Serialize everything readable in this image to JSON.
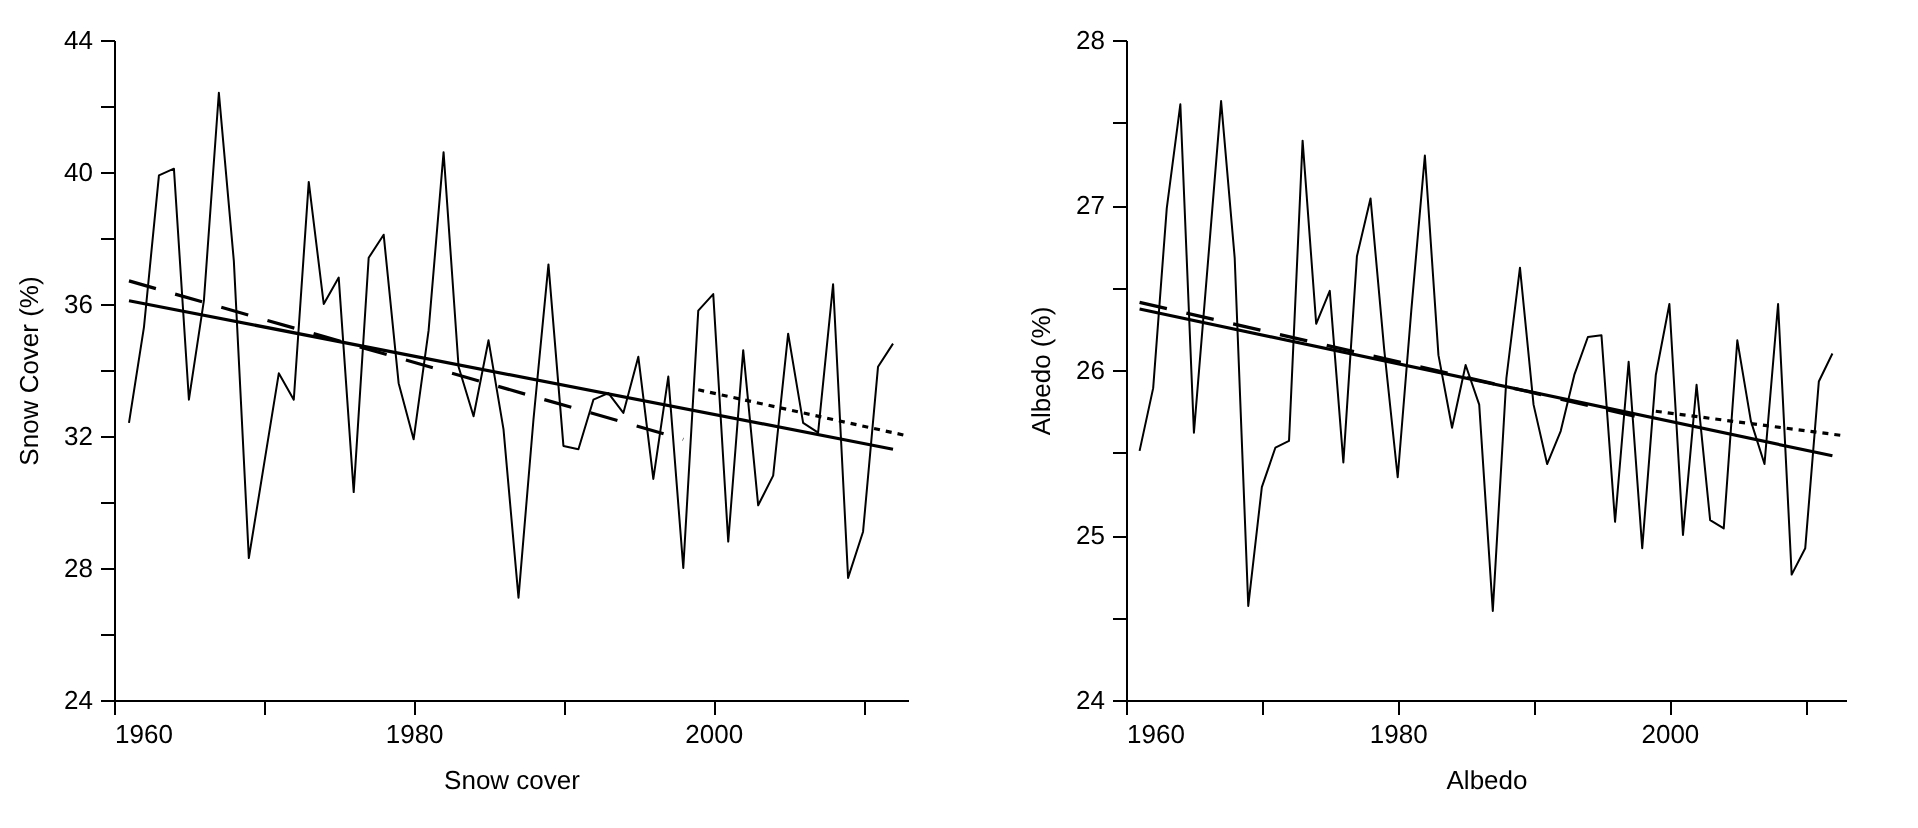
{
  "chart_data": [
    {
      "type": "line",
      "xlabel": "Snow cover",
      "ylabel": "Snow Cover (%)",
      "xlim": [
        1960,
        2013
      ],
      "ylim": [
        24,
        44
      ],
      "xticks": [
        1960,
        {
          "value": 1970,
          "label": null
        },
        1980,
        {
          "value": 1990,
          "label": null
        },
        2000,
        {
          "value": 2010,
          "label": null
        }
      ],
      "yticks": [
        24,
        {
          "value": 26,
          "label": null
        },
        28,
        {
          "value": 30,
          "label": null
        },
        32,
        {
          "value": 34,
          "label": null
        },
        36,
        {
          "value": 38,
          "label": null
        },
        40,
        {
          "value": 42,
          "label": null
        },
        44
      ],
      "grid": false,
      "marker": "none",
      "x": [
        1961,
        1962,
        1963,
        1964,
        1965,
        1966,
        1967,
        1968,
        1969,
        1970,
        1971,
        1972,
        1973,
        1974,
        1975,
        1976,
        1977,
        1978,
        1979,
        1980,
        1981,
        1982,
        1983,
        1984,
        1985,
        1986,
        1987,
        1988,
        1989,
        1990,
        1991,
        1992,
        1993,
        1994,
        1995,
        1996,
        1997,
        1998,
        1999,
        2000,
        2001,
        2002,
        2003,
        2004,
        2005,
        2006,
        2007,
        2008,
        2009,
        2010,
        2011,
        2012
      ],
      "series": [
        {
          "color": "#000000",
          "line_style": "solid",
          "values": [
            32.4,
            35.3,
            39.9,
            40.1,
            33.1,
            36.1,
            42.4,
            37.3,
            28.3,
            31.1,
            33.9,
            33.1,
            39.7,
            36.0,
            36.8,
            30.3,
            37.4,
            38.1,
            33.6,
            31.9,
            35.2,
            40.6,
            34.1,
            32.6,
            34.9,
            32.2,
            27.1,
            32.5,
            37.2,
            31.7,
            31.6,
            33.1,
            33.3,
            32.7,
            34.4,
            30.7,
            33.8,
            28.0,
            35.8,
            36.3,
            28.8,
            34.6,
            29.9,
            30.8,
            35.1,
            32.4,
            32.1,
            36.6,
            27.7,
            29.1,
            34.1,
            34.8
          ]
        },
        {
          "color": "#000000",
          "line_style": "solid",
          "x": [
            1961,
            2012
          ],
          "values": [
            36.1,
            31.6
          ]
        },
        {
          "color": "#000000",
          "line_style": "dashed",
          "x": [
            1961,
            1998
          ],
          "values": [
            36.7,
            31.9
          ]
        },
        {
          "color": "#000000",
          "line_style": "dotted",
          "x": [
            1999,
            2013
          ],
          "values": [
            33.4,
            32.0
          ]
        }
      ]
    },
    {
      "type": "line",
      "xlabel": "Albedo",
      "ylabel": "Albedo (%)",
      "xlim": [
        1960,
        2013
      ],
      "ylim": [
        24,
        28
      ],
      "xticks": [
        1960,
        {
          "value": 1970,
          "label": null
        },
        1980,
        {
          "value": 1990,
          "label": null
        },
        2000,
        {
          "value": 2010,
          "label": null
        }
      ],
      "yticks": [
        24,
        {
          "value": 24.5,
          "label": null
        },
        25,
        {
          "value": 25.5,
          "label": null
        },
        26,
        {
          "value": 26.5,
          "label": null
        },
        27,
        {
          "value": 27.5,
          "label": null
        },
        28
      ],
      "grid": false,
      "marker": "none",
      "x": [
        1961,
        1962,
        1963,
        1964,
        1965,
        1966,
        1967,
        1968,
        1969,
        1970,
        1971,
        1972,
        1973,
        1974,
        1975,
        1976,
        1977,
        1978,
        1979,
        1980,
        1981,
        1982,
        1983,
        1984,
        1985,
        1986,
        1987,
        1988,
        1989,
        1990,
        1991,
        1992,
        1993,
        1994,
        1995,
        1996,
        1997,
        1998,
        1999,
        2000,
        2001,
        2002,
        2003,
        2004,
        2005,
        2006,
        2007,
        2008,
        2009,
        2010,
        2011,
        2012
      ],
      "series": [
        {
          "color": "#000000",
          "line_style": "solid",
          "values": [
            25.51,
            25.89,
            26.98,
            27.61,
            25.62,
            26.62,
            27.63,
            26.68,
            24.57,
            25.29,
            25.53,
            25.57,
            27.39,
            26.28,
            26.48,
            25.44,
            26.69,
            27.04,
            26.13,
            25.35,
            26.36,
            27.3,
            26.09,
            25.65,
            26.03,
            25.79,
            24.54,
            25.95,
            26.62,
            25.79,
            25.43,
            25.63,
            25.97,
            26.2,
            26.21,
            25.08,
            26.05,
            24.92,
            25.97,
            26.4,
            25.0,
            25.91,
            25.09,
            25.04,
            26.18,
            25.69,
            25.43,
            26.4,
            24.76,
            24.92,
            25.93,
            26.1
          ]
        },
        {
          "color": "#000000",
          "line_style": "solid",
          "x": [
            1961,
            2012
          ],
          "values": [
            26.37,
            25.48
          ]
        },
        {
          "color": "#000000",
          "line_style": "dashed",
          "x": [
            1961,
            1998
          ],
          "values": [
            26.41,
            25.71
          ]
        },
        {
          "color": "#000000",
          "line_style": "dotted",
          "x": [
            1999,
            2013
          ],
          "values": [
            25.75,
            25.6
          ]
        }
      ]
    }
  ]
}
